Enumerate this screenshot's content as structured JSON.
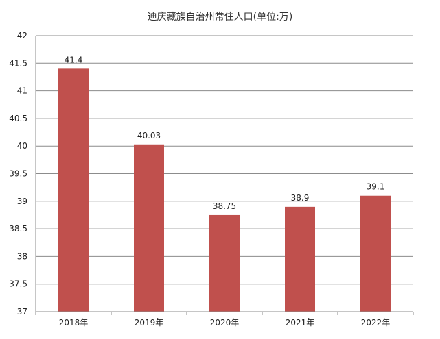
{
  "chart_data": {
    "type": "bar",
    "title": "迪庆藏族自治州常住人口(单位:万)",
    "categories": [
      "2018年",
      "2019年",
      "2020年",
      "2021年",
      "2022年"
    ],
    "values": [
      41.4,
      40.03,
      38.75,
      38.9,
      39.1
    ],
    "value_labels": [
      "41.4",
      "40.03",
      "38.75",
      "38.9",
      "39.1"
    ],
    "ylim": [
      37,
      42
    ],
    "yticks": [
      37,
      37.5,
      38,
      38.5,
      39,
      39.5,
      40,
      40.5,
      41,
      41.5,
      42
    ],
    "grid": true,
    "legend": "none",
    "colors": {
      "bar": "#c0504d",
      "grid": "#8c8c8c",
      "axis": "#8c8c8c"
    }
  }
}
